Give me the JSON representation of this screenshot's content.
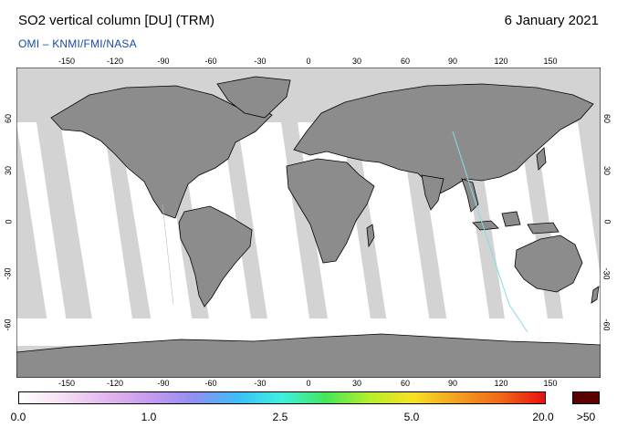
{
  "header": {
    "title": "SO2 vertical column [DU] (TRM)",
    "date": "6 January 2021",
    "credit": "OMI  –  KNMI/FMI/NASA"
  },
  "map": {
    "lon_ticks": [
      "-150",
      "-120",
      "-90",
      "-60",
      "-30",
      "0",
      "30",
      "60",
      "90",
      "120",
      "150"
    ],
    "lat_ticks": [
      "60",
      "30",
      "0",
      "-30",
      "-60"
    ],
    "colors": {
      "land": "#8c8c8c",
      "no_data": "#d3d3d3",
      "swath": "#ffffff",
      "coastline": "#000000"
    }
  },
  "colorbar": {
    "labels": [
      "0.0",
      "1.0",
      "2.5",
      "5.0",
      "20.0"
    ],
    "overflow_label": ">50",
    "overflow_color": "#5a0000",
    "stops": [
      "#ffffff",
      "#f4dff4",
      "#e4b6ee",
      "#c69af0",
      "#8f8ff0",
      "#3bc0f8",
      "#3ef0e0",
      "#44e65a",
      "#b6ee2a",
      "#f8e024",
      "#f0a020",
      "#f06818",
      "#e81010"
    ]
  }
}
